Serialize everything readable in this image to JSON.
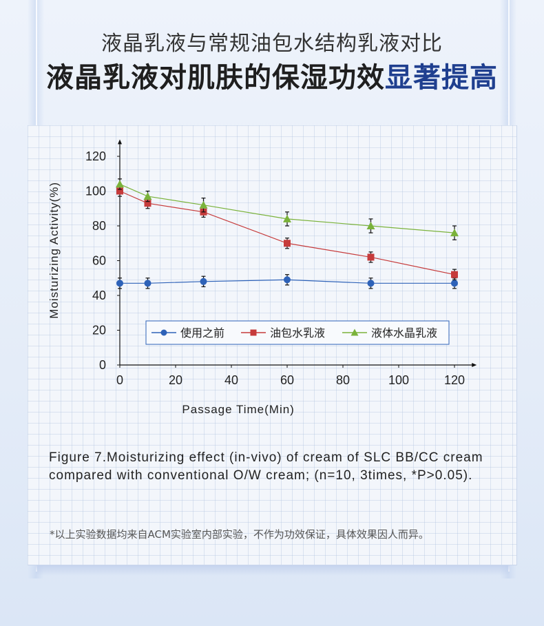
{
  "header": {
    "subtitle": "液晶乳液与常规油包水结构乳液对比",
    "headline_main": "液晶乳液对肌肤的保湿功效",
    "headline_highlight": "显著提高"
  },
  "chart_data": {
    "type": "line",
    "x": [
      0,
      10,
      30,
      60,
      90,
      120
    ],
    "xlabel": "Passage Time(Min)",
    "ylabel": "Moisturizing Activity(%)",
    "xlim": [
      0,
      125
    ],
    "ylim": [
      0,
      125
    ],
    "xticks": [
      0,
      20,
      40,
      60,
      80,
      100,
      120
    ],
    "yticks": [
      0,
      20,
      40,
      60,
      80,
      100,
      120
    ],
    "legend_position": "bottom-center",
    "series": [
      {
        "name": "使用之前",
        "color": "#2e62b8",
        "marker": "circle",
        "values": [
          47,
          47,
          48,
          49,
          47,
          47
        ],
        "errors": [
          3,
          3,
          3,
          3,
          3,
          3
        ]
      },
      {
        "name": "油包水乳液",
        "color": "#c63b3b",
        "marker": "square",
        "values": [
          100,
          93,
          88,
          70,
          62,
          52
        ],
        "errors": [
          3,
          3,
          3,
          3,
          3,
          3
        ]
      },
      {
        "name": "液体水晶乳液",
        "color": "#7ab23a",
        "marker": "triangle",
        "values": [
          104,
          97,
          92,
          84,
          80,
          76
        ],
        "errors": [
          3,
          3,
          4,
          4,
          4,
          4
        ]
      }
    ]
  },
  "caption": {
    "line1": "Figure 7.Moisturizing effect (in-vivo) of cream of SLC BB/CC cream",
    "line2": "compared with conventional O/W cream; (n=10, 3times, *P>0.05)."
  },
  "footnote": "*以上实验数据均来自ACM实验室内部实验，不作为功效保证，具体效果因人而异。"
}
